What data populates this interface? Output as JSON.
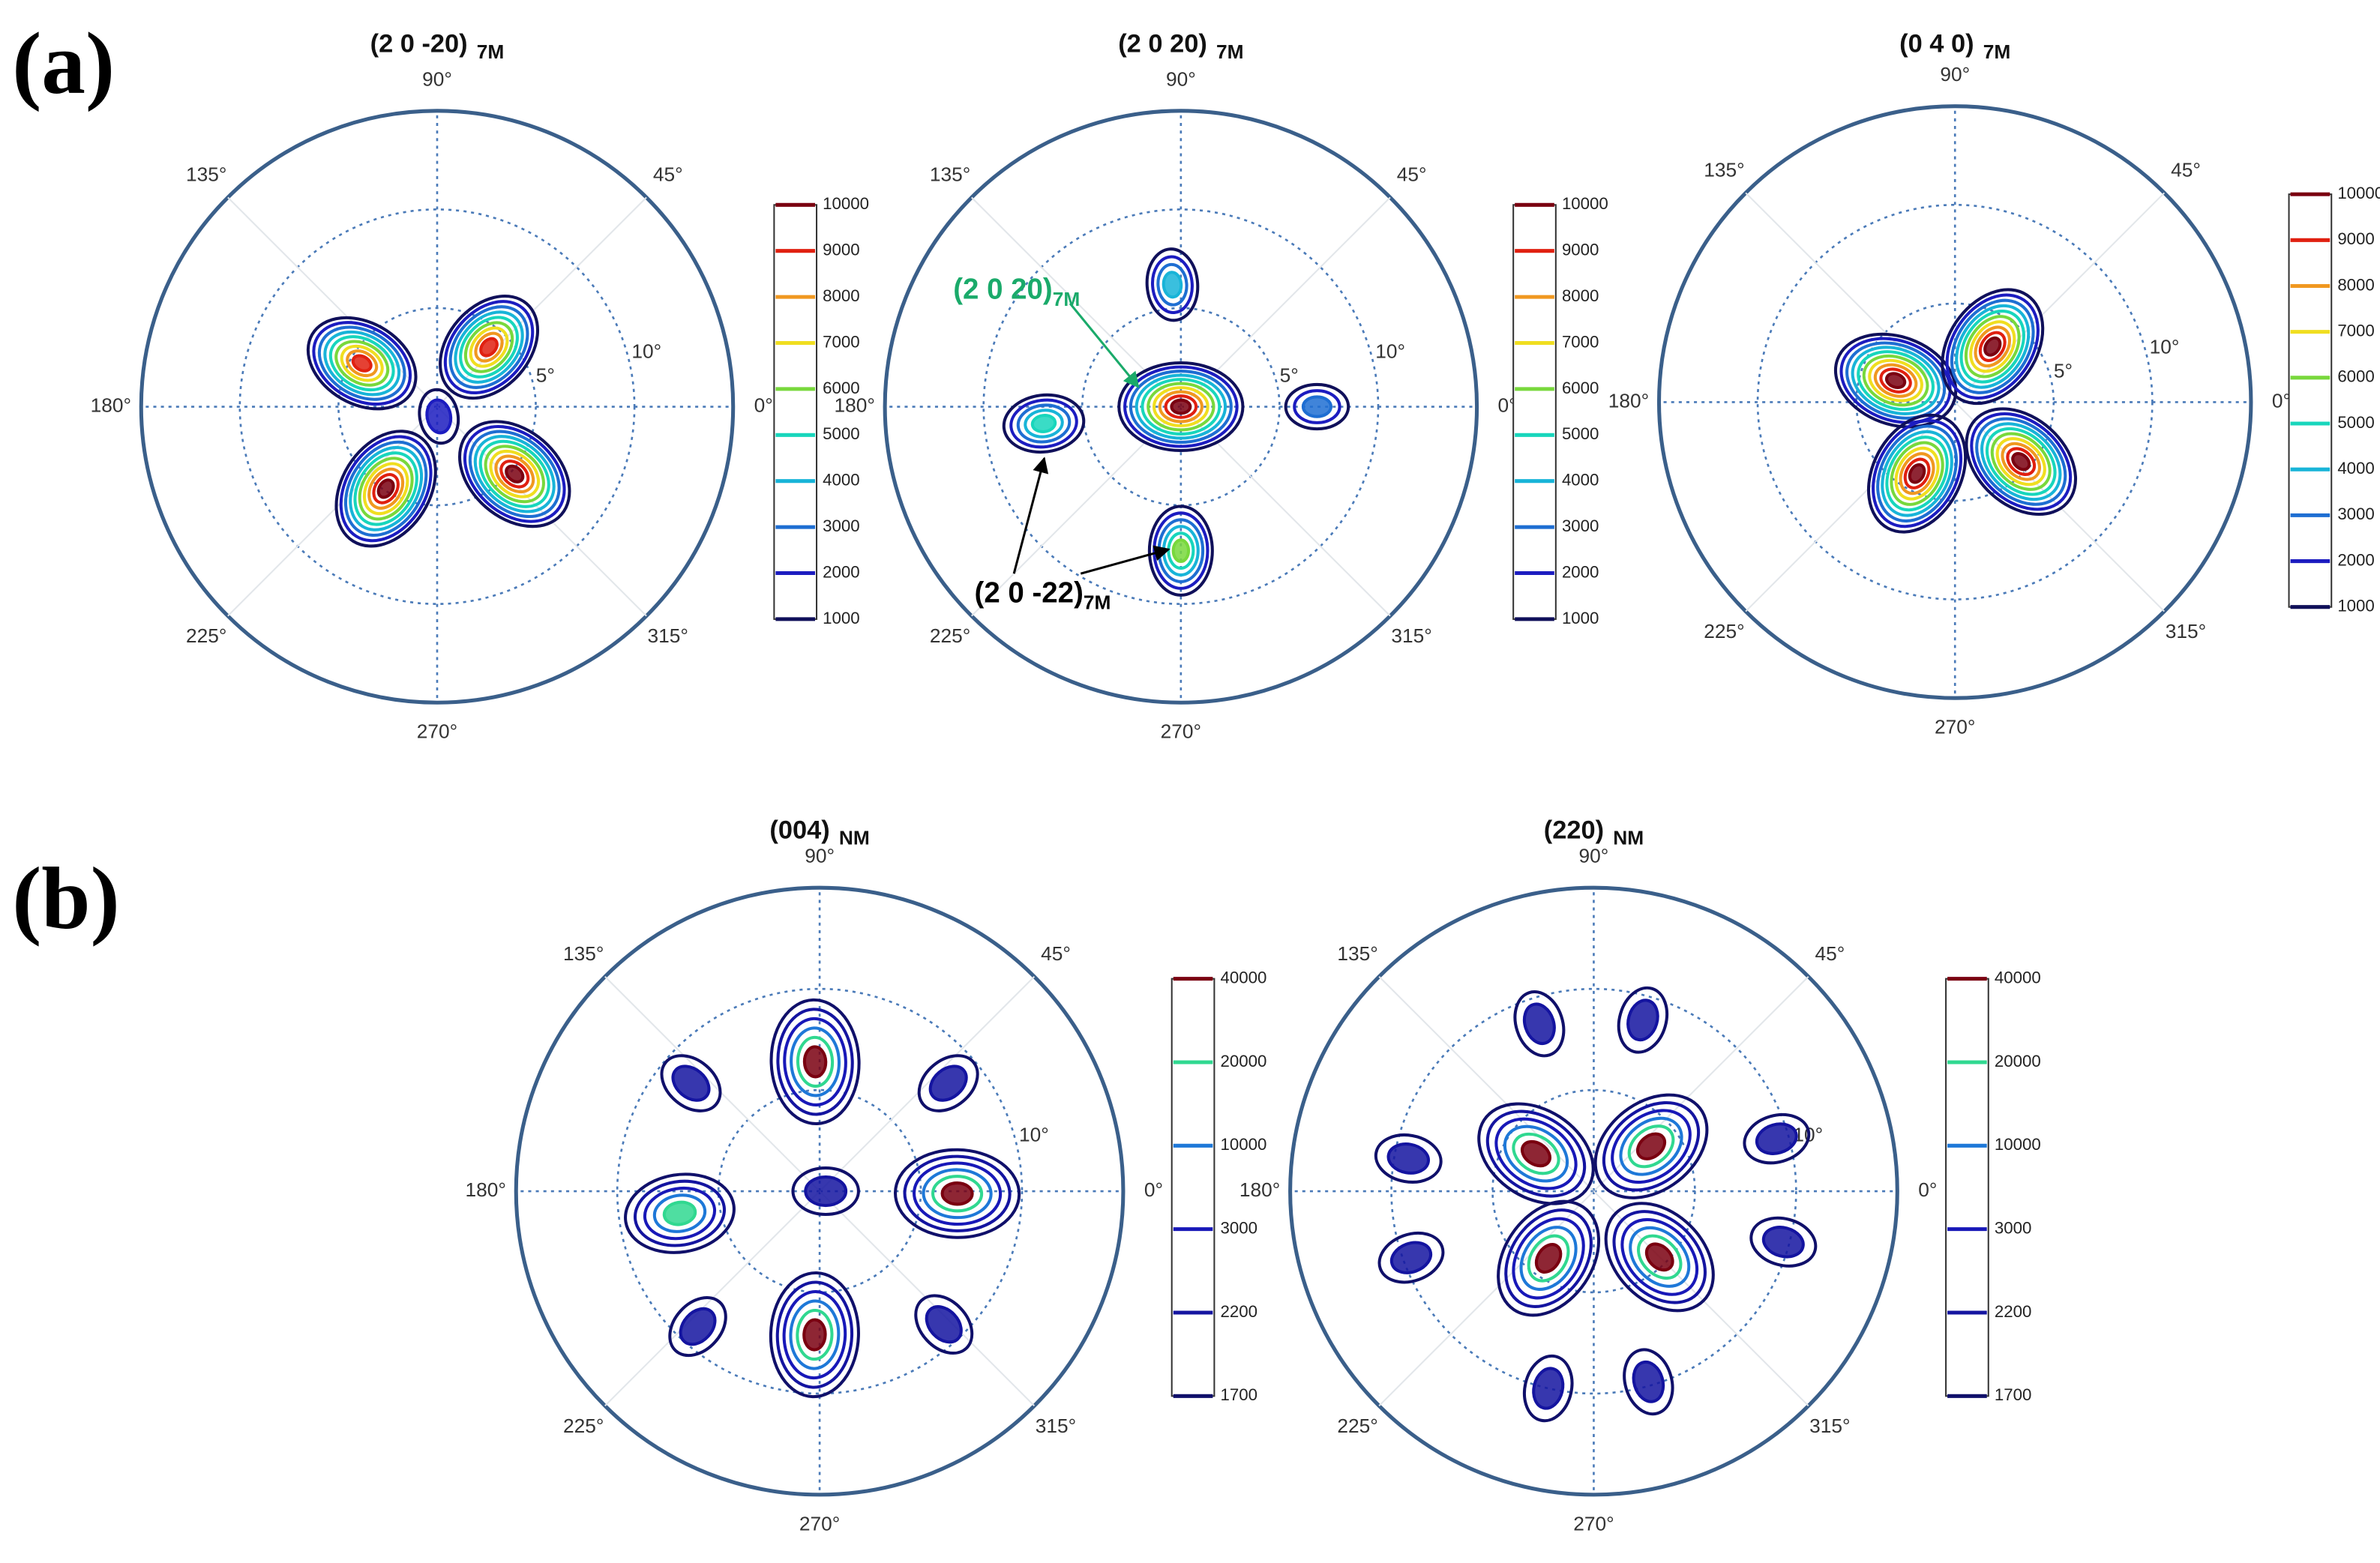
{
  "panel_labels": [
    "(a)",
    "(b)"
  ],
  "chart_data": [
    {
      "type": "polar-contour",
      "title": "(2 0 -20)",
      "title_sub": "7M",
      "rlim": [
        0,
        15
      ],
      "rticks": [
        {
          "value": 5,
          "label": "5°"
        },
        {
          "value": 10,
          "label": "10°"
        }
      ],
      "angle_ticks": [
        {
          "value": 0,
          "label": "0°"
        },
        {
          "value": 45,
          "label": "45°"
        },
        {
          "value": 90,
          "label": "90°"
        },
        {
          "value": 135,
          "label": "135°"
        },
        {
          "value": 180,
          "label": "180°"
        },
        {
          "value": 225,
          "label": "225°"
        },
        {
          "value": 270,
          "label": "270°"
        },
        {
          "value": 315,
          "label": "315°"
        }
      ],
      "colorbar": {
        "ticks": [
          1000,
          2000,
          3000,
          4000,
          5000,
          6000,
          7000,
          8000,
          9000,
          10000
        ],
        "colors": [
          "#10105a",
          "#1c1cc0",
          "#1e6ed2",
          "#18b4d8",
          "#18d6bc",
          "#78d83c",
          "#f0de20",
          "#f09820",
          "#e02010",
          "#7a0010"
        ]
      },
      "peaks": [
        {
          "angle": 150,
          "r": 4.4,
          "intensity": 9000
        },
        {
          "angle": 49,
          "r": 4,
          "intensity": 9000
        },
        {
          "angle": 238,
          "r": 4.9,
          "intensity": 10000
        },
        {
          "angle": 319,
          "r": 5.2,
          "intensity": 10000
        },
        {
          "angle": 280,
          "r": 0.5,
          "intensity": 2000
        }
      ]
    },
    {
      "type": "polar-contour",
      "title": "(2 0 20)",
      "title_sub": "7M",
      "rlim": [
        0,
        15
      ],
      "rticks": [
        {
          "value": 5,
          "label": "5°"
        },
        {
          "value": 10,
          "label": "10°"
        }
      ],
      "angle_ticks": [
        {
          "value": 0,
          "label": "0°"
        },
        {
          "value": 45,
          "label": "45°"
        },
        {
          "value": 90,
          "label": "90°"
        },
        {
          "value": 135,
          "label": "135°"
        },
        {
          "value": 180,
          "label": "180°"
        },
        {
          "value": 225,
          "label": "225°"
        },
        {
          "value": 270,
          "label": "270°"
        },
        {
          "value": 315,
          "label": "315°"
        }
      ],
      "colorbar": {
        "ticks": [
          1000,
          2000,
          3000,
          4000,
          5000,
          6000,
          7000,
          8000,
          9000,
          10000
        ],
        "colors": [
          "#10105a",
          "#1c1cc0",
          "#1e6ed2",
          "#18b4d8",
          "#18d6bc",
          "#78d83c",
          "#f0de20",
          "#f09820",
          "#e02010",
          "#7a0010"
        ]
      },
      "peaks": [
        {
          "angle": 0,
          "r": 0,
          "intensity": 10000
        },
        {
          "angle": 94,
          "r": 6.2,
          "intensity": 4000
        },
        {
          "angle": 270,
          "r": 7.3,
          "intensity": 6000
        },
        {
          "angle": 187,
          "r": 7,
          "intensity": 5000
        },
        {
          "angle": 0,
          "r": 6.9,
          "intensity": 3000
        }
      ],
      "annotations": [
        {
          "text": "(2 0 20)",
          "sub": "7M",
          "color": "#1aaa6a"
        },
        {
          "text": "(2 0 -22)",
          "sub": "7M",
          "color": "#000000"
        }
      ]
    },
    {
      "type": "polar-contour",
      "title": "(0 4 0)",
      "title_sub": "7M",
      "rlim": [
        0,
        15
      ],
      "rticks": [
        {
          "value": 5,
          "label": "5°"
        },
        {
          "value": 10,
          "label": "10°"
        }
      ],
      "angle_ticks": [
        {
          "value": 0,
          "label": "0°"
        },
        {
          "value": 45,
          "label": "45°"
        },
        {
          "value": 90,
          "label": "90°"
        },
        {
          "value": 135,
          "label": "135°"
        },
        {
          "value": 180,
          "label": "180°"
        },
        {
          "value": 225,
          "label": "225°"
        },
        {
          "value": 270,
          "label": "270°"
        },
        {
          "value": 315,
          "label": "315°"
        }
      ],
      "colorbar": {
        "ticks": [
          1000,
          2000,
          3000,
          4000,
          5000,
          6000,
          7000,
          8000,
          9000,
          10000
        ],
        "colors": [
          "#10105a",
          "#1c1cc0",
          "#1e6ed2",
          "#18b4d8",
          "#18d6bc",
          "#78d83c",
          "#f0de20",
          "#f09820",
          "#e02010",
          "#7a0010"
        ]
      },
      "peaks": [
        {
          "angle": 160,
          "r": 3.2,
          "intensity": 10000
        },
        {
          "angle": 56,
          "r": 3.4,
          "intensity": 10000
        },
        {
          "angle": 242,
          "r": 4.1,
          "intensity": 10000
        },
        {
          "angle": 318,
          "r": 4.5,
          "intensity": 10000
        }
      ]
    },
    {
      "type": "polar-contour",
      "title": "(004)",
      "title_sub": "NM",
      "rlim": [
        0,
        15
      ],
      "rgrid": [
        5,
        10
      ],
      "rticks": [
        {
          "value": 10,
          "label": "10°"
        }
      ],
      "angle_ticks": [
        {
          "value": 0,
          "label": "0°"
        },
        {
          "value": 45,
          "label": "45°"
        },
        {
          "value": 90,
          "label": "90°"
        },
        {
          "value": 135,
          "label": "135°"
        },
        {
          "value": 180,
          "label": "180°"
        },
        {
          "value": 225,
          "label": "225°"
        },
        {
          "value": 270,
          "label": "270°"
        },
        {
          "value": 315,
          "label": "315°"
        }
      ],
      "colorbar": {
        "ticks": [
          1700,
          2200,
          3000,
          10000,
          20000,
          40000
        ],
        "colors": [
          "#10106a",
          "#1414a0",
          "#1818b8",
          "#1e78d8",
          "#30d890",
          "#7a0010"
        ]
      },
      "peaks": [
        {
          "angle": 92,
          "r": 6.4,
          "intensity": 40000
        },
        {
          "angle": 268,
          "r": 7.1,
          "intensity": 40000
        },
        {
          "angle": 189,
          "r": 7,
          "intensity": 20000
        },
        {
          "angle": 359,
          "r": 6.8,
          "intensity": 40000
        },
        {
          "angle": 0,
          "r": 0.3,
          "intensity": 2200
        },
        {
          "angle": 140,
          "r": 8.3,
          "intensity": 2200
        },
        {
          "angle": 40,
          "r": 8.3,
          "intensity": 2200
        },
        {
          "angle": 228,
          "r": 9,
          "intensity": 2200
        },
        {
          "angle": 313,
          "r": 9,
          "intensity": 2200
        }
      ]
    },
    {
      "type": "polar-contour",
      "title": "(220)",
      "title_sub": "NM",
      "rlim": [
        0,
        15
      ],
      "rgrid": [
        5,
        10
      ],
      "rticks": [
        {
          "value": 10,
          "label": "10°"
        }
      ],
      "angle_ticks": [
        {
          "value": 0,
          "label": "0°"
        },
        {
          "value": 45,
          "label": "45°"
        },
        {
          "value": 90,
          "label": "90°"
        },
        {
          "value": 135,
          "label": "135°"
        },
        {
          "value": 180,
          "label": "180°"
        },
        {
          "value": 225,
          "label": "225°"
        },
        {
          "value": 270,
          "label": "270°"
        },
        {
          "value": 315,
          "label": "315°"
        }
      ],
      "colorbar": {
        "ticks": [
          1700,
          2200,
          3000,
          10000,
          20000,
          40000
        ],
        "colors": [
          "#10106a",
          "#1414a0",
          "#1818b8",
          "#1e78d8",
          "#30d890",
          "#7a0010"
        ]
      },
      "peaks": [
        {
          "angle": 147,
          "r": 3.4,
          "intensity": 40000
        },
        {
          "angle": 38,
          "r": 3.6,
          "intensity": 40000
        },
        {
          "angle": 236,
          "r": 4,
          "intensity": 40000
        },
        {
          "angle": 315,
          "r": 4.6,
          "intensity": 40000
        },
        {
          "angle": 108,
          "r": 8.7,
          "intensity": 2200
        },
        {
          "angle": 74,
          "r": 8.8,
          "intensity": 2200
        },
        {
          "angle": 16,
          "r": 9.4,
          "intensity": 2200
        },
        {
          "angle": 345,
          "r": 9.7,
          "intensity": 2200
        },
        {
          "angle": 286,
          "r": 9.8,
          "intensity": 2200
        },
        {
          "angle": 257,
          "r": 10,
          "intensity": 2200
        },
        {
          "angle": 200,
          "r": 9.6,
          "intensity": 2200
        },
        {
          "angle": 170,
          "r": 9.3,
          "intensity": 2200
        }
      ]
    }
  ]
}
